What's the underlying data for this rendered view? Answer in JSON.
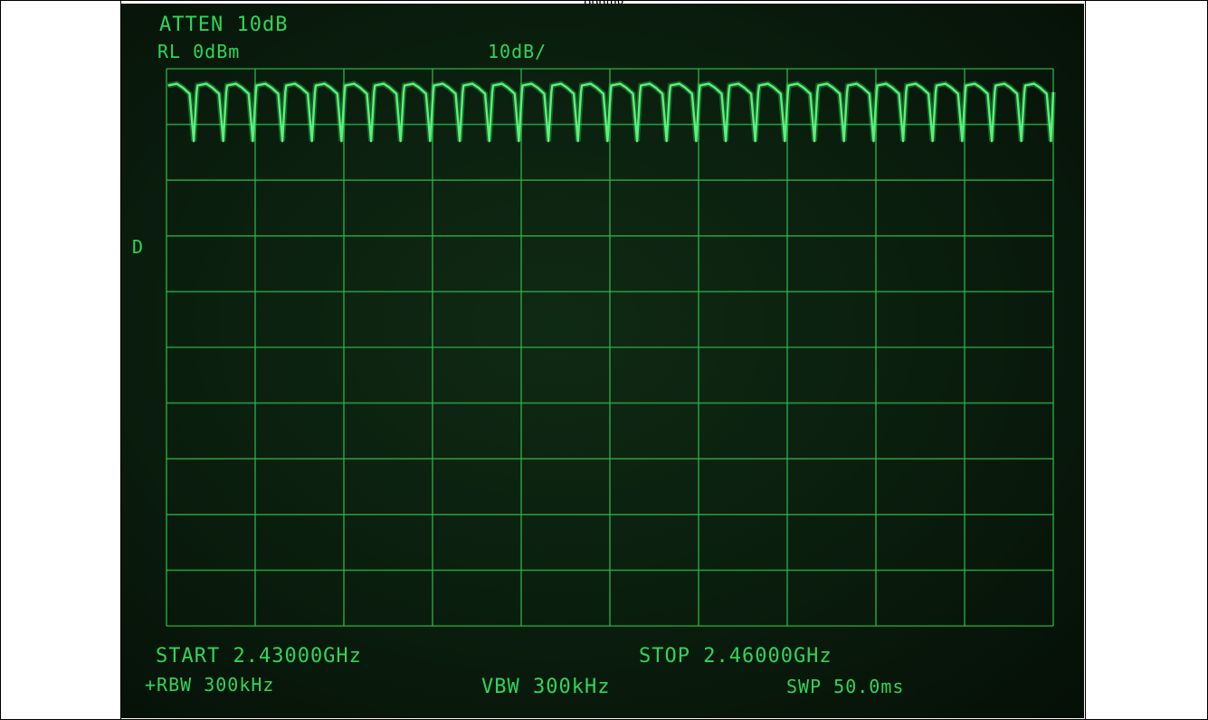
{
  "caption": "opping",
  "screen": {
    "atten": "ATTEN 10dB",
    "ref_level": "RL 0dBm",
    "scale": "10dB/",
    "marker": "D",
    "start": "START 2.43000GHz",
    "stop": "STOP 2.46000GHz",
    "rbw": "+RBW 300kHz",
    "vbw": "VBW 300kHz",
    "sweep": "SWP 50.0ms"
  },
  "chart_data": {
    "type": "line",
    "title": "",
    "xlabel": "",
    "ylabel": "",
    "x_range_ghz": [
      2.43,
      2.46
    ],
    "y_range_dbm": [
      -100,
      0
    ],
    "y_div_db": 10,
    "grid": true,
    "grid_divisions": {
      "x": 10,
      "y": 10
    },
    "trace_color": "#5cf07a",
    "series": [
      {
        "channel_freqs_ghz": [
          2.43,
          2.431,
          2.432,
          2.433,
          2.434,
          2.435,
          2.436,
          2.437,
          2.438,
          2.439,
          2.44,
          2.441,
          2.442,
          2.443,
          2.444,
          2.445,
          2.446,
          2.447,
          2.448,
          2.449,
          2.45,
          2.451,
          2.452,
          2.453,
          2.454,
          2.455,
          2.456,
          2.457,
          2.458,
          2.459
        ],
        "peak_dbm": -3,
        "dip_dbm": -13
      }
    ]
  }
}
